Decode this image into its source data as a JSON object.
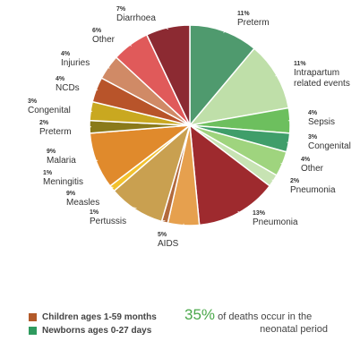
{
  "chart_data": {
    "type": "pie",
    "slices": [
      {
        "name": "Preterm",
        "pct_label": "11%",
        "value": 11,
        "color": "#4f9a6e",
        "group": "neonatal"
      },
      {
        "name": "Intrapartum related events",
        "pct_label": "11%",
        "value": 11,
        "color": "#bfdfa9",
        "group": "neonatal"
      },
      {
        "name": "Sepsis",
        "pct_label": "4%",
        "value": 4,
        "color": "#6dbf5e",
        "group": "neonatal"
      },
      {
        "name": "Congenital",
        "pct_label": "3%",
        "value": 3,
        "color": "#3f9e6a",
        "group": "neonatal"
      },
      {
        "name": "Other",
        "pct_label": "4%",
        "value": 4,
        "color": "#9fd47e",
        "group": "neonatal"
      },
      {
        "name": "Pneumonia",
        "pct_label": "2%",
        "value": 2,
        "color": "#c7e3b3",
        "group": "neonatal"
      },
      {
        "name": "Pneumonia",
        "pct_label": "13%",
        "value": 13,
        "color": "#9e2a2e",
        "group": "children"
      },
      {
        "name": "AIDS",
        "pct_label": "5%",
        "value": 5,
        "color": "#e6a04e",
        "group": "children"
      },
      {
        "name": "Pertussis",
        "pct_label": "1%",
        "value": 1,
        "color": "#b36a3c",
        "group": "children"
      },
      {
        "name": "Measles",
        "pct_label": "9%",
        "value": 9,
        "color": "#c9a050",
        "group": "children"
      },
      {
        "name": "Meningitis",
        "pct_label": "1%",
        "value": 1,
        "color": "#f2c12e",
        "group": "children"
      },
      {
        "name": "Malaria",
        "pct_label": "9%",
        "value": 9,
        "color": "#e08a2c",
        "group": "children"
      },
      {
        "name": "Preterm",
        "pct_label": "2%",
        "value": 2,
        "color": "#8a7a1a",
        "group": "children"
      },
      {
        "name": "Congenital",
        "pct_label": "3%",
        "value": 3,
        "color": "#c9a820",
        "group": "children"
      },
      {
        "name": "NCDs",
        "pct_label": "4%",
        "value": 4,
        "color": "#b8542a",
        "group": "children"
      },
      {
        "name": "Injuries",
        "pct_label": "4%",
        "value": 4,
        "color": "#d08a66",
        "group": "children"
      },
      {
        "name": "Other",
        "pct_label": "6%",
        "value": 6,
        "color": "#e05a5a",
        "group": "children"
      },
      {
        "name": "Diarrhoea",
        "pct_label": "7%",
        "value": 7,
        "color": "#8c2a32",
        "group": "children"
      }
    ],
    "legend": [
      {
        "label": "Children ages 1-59 months",
        "color": "#b35a2a"
      },
      {
        "label": "Newborns ages 0-27 days",
        "color": "#2e9a5e"
      }
    ],
    "legend_placement": "bottom-left"
  },
  "callout": {
    "percent": "35%",
    "text_line1": "of deaths occur in the",
    "text_line2": "neonatal period"
  }
}
